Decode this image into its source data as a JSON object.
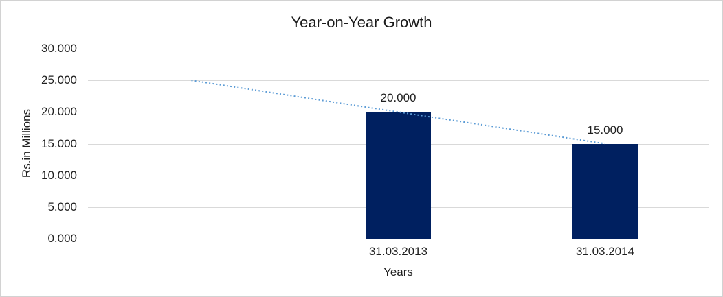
{
  "window": {
    "background": "#ffffff",
    "frame_border_color": "#d2d2d2"
  },
  "chart_data": {
    "type": "bar",
    "title": "Year-on-Year Growth",
    "xlabel": "Years",
    "ylabel": "Rs.in Millions",
    "categories": [
      "",
      "31.03.2013",
      "31.03.2014"
    ],
    "series": [
      {
        "name": "growth-bars",
        "type": "bar",
        "color": "#002060",
        "values": [
          null,
          20000,
          15000
        ],
        "data_labels": [
          "",
          "20.000",
          "15.000"
        ]
      },
      {
        "name": "trendline",
        "type": "line",
        "line_style": "dotted",
        "color": "#5b9bd5",
        "values": [
          25000,
          20000,
          15000
        ]
      }
    ],
    "ylim": [
      0,
      30000
    ],
    "yticks": [
      {
        "value": 0,
        "label": "0.000"
      },
      {
        "value": 5000,
        "label": "5.000"
      },
      {
        "value": 10000,
        "label": "10.000"
      },
      {
        "value": 15000,
        "label": "15.000"
      },
      {
        "value": 20000,
        "label": "20.000"
      },
      {
        "value": 25000,
        "label": "25.000"
      },
      {
        "value": 30000,
        "label": "30.000"
      }
    ],
    "grid": true,
    "grid_color": "#d9d9d9",
    "axis_line_color": "#c9c9c9",
    "legend": "none",
    "text_color": "#1f1f1f"
  }
}
